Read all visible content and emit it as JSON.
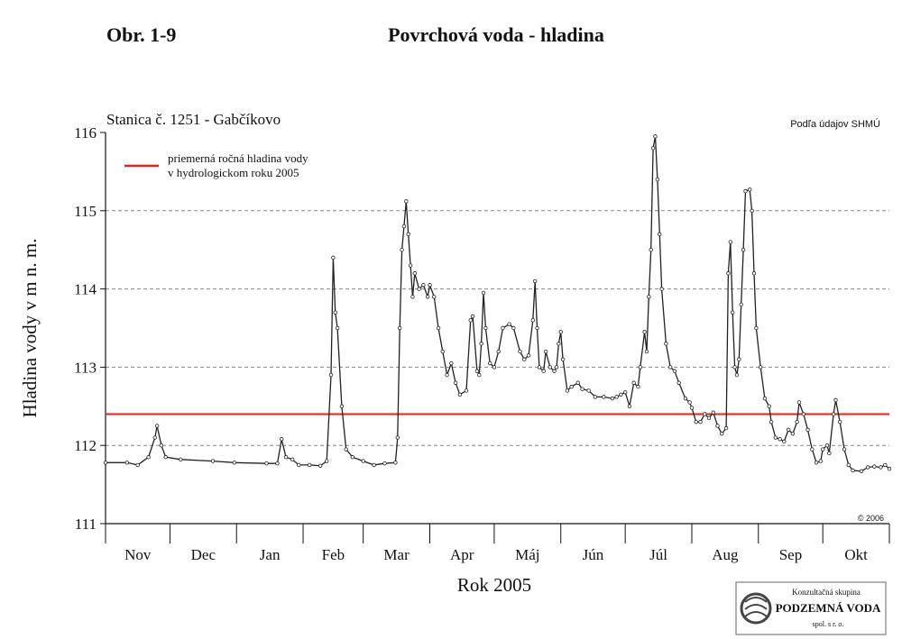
{
  "figure_label": "Obr. 1-9",
  "chart_data": {
    "type": "line",
    "title": "Povrchová voda - hladina",
    "subtitle": "Stanica č. 1251 - Gabčíkovo",
    "source": "Podľa údajov SHMÚ",
    "copyright": "© 2006",
    "ylabel": "Hladina vody v m n. m.",
    "xlabel": "Rok 2005",
    "months": [
      "Nov",
      "Dec",
      "Jan",
      "Feb",
      "Mar",
      "Apr",
      "Máj",
      "Jún",
      "Júl",
      "Aug",
      "Sep",
      "Okt"
    ],
    "xlim": [
      0,
      365
    ],
    "xticks": [
      0,
      30,
      61,
      92,
      120,
      151,
      181,
      212,
      242,
      273,
      304,
      334,
      365
    ],
    "ylim": [
      111,
      116
    ],
    "yticks": [
      111,
      112,
      113,
      114,
      115,
      116
    ],
    "grid": true,
    "reference": {
      "label": [
        "priemerná ročná hladina vody",
        "v hydrologickom roku 2005"
      ],
      "value": 112.4,
      "color": "#e3231b"
    },
    "series": [
      {
        "color": "#222222",
        "x": [
          0,
          10,
          15,
          20,
          23,
          24,
          26,
          28,
          35,
          50,
          60,
          75,
          80,
          82,
          84,
          87,
          90,
          95,
          100,
          103,
          105,
          106,
          107,
          108,
          110,
          112,
          115,
          120,
          125,
          130,
          135,
          136,
          137,
          138,
          139,
          140,
          141,
          142,
          143,
          144,
          146,
          148,
          150,
          151,
          153,
          155,
          157,
          159,
          161,
          163,
          165,
          168,
          170,
          171,
          173,
          174,
          175,
          176,
          177,
          179,
          181,
          183,
          185,
          188,
          190,
          193,
          195,
          197,
          199,
          200,
          201,
          202,
          204,
          205,
          207,
          209,
          210,
          211,
          212,
          213,
          215,
          217,
          220,
          222,
          225,
          228,
          232,
          236,
          238,
          240,
          242,
          244,
          246,
          248,
          249,
          251,
          252,
          253,
          254,
          255,
          256,
          257,
          258,
          259,
          261,
          263,
          265,
          267,
          270,
          272,
          273,
          275,
          277,
          279,
          281,
          283,
          285,
          287,
          289,
          290,
          291,
          292,
          293,
          294,
          295,
          296,
          297,
          298,
          300,
          301,
          302,
          303,
          305,
          307,
          309,
          310,
          312,
          314,
          316,
          318,
          320,
          322,
          323,
          325,
          327,
          329,
          331,
          333,
          334,
          336,
          337,
          339,
          340,
          342,
          344,
          346,
          348,
          352,
          355,
          358,
          361,
          363,
          365
        ],
        "values": [
          111.78,
          111.78,
          111.75,
          111.85,
          112.1,
          112.25,
          112.0,
          111.85,
          111.82,
          111.8,
          111.78,
          111.77,
          111.77,
          112.08,
          111.85,
          111.82,
          111.75,
          111.75,
          111.74,
          111.8,
          112.9,
          114.4,
          113.7,
          113.5,
          112.5,
          111.95,
          111.85,
          111.8,
          111.75,
          111.77,
          111.78,
          112.1,
          113.5,
          114.5,
          114.8,
          115.12,
          114.7,
          114.3,
          113.9,
          114.2,
          114.0,
          114.05,
          113.9,
          114.05,
          113.9,
          113.5,
          113.2,
          112.9,
          113.05,
          112.8,
          112.65,
          112.7,
          113.6,
          113.65,
          112.95,
          112.9,
          113.3,
          113.95,
          113.5,
          113.05,
          113.0,
          113.2,
          113.5,
          113.55,
          113.5,
          113.2,
          113.1,
          113.15,
          113.6,
          114.1,
          113.5,
          113.0,
          112.95,
          113.2,
          113.0,
          112.95,
          113.0,
          113.3,
          113.45,
          113.1,
          112.7,
          112.75,
          112.8,
          112.72,
          112.7,
          112.62,
          112.62,
          112.6,
          112.62,
          112.65,
          112.68,
          112.5,
          112.8,
          112.75,
          113.0,
          113.45,
          113.2,
          113.9,
          114.5,
          115.8,
          115.95,
          115.4,
          114.7,
          114.0,
          113.3,
          113.0,
          112.95,
          112.8,
          112.6,
          112.55,
          112.48,
          112.3,
          112.3,
          112.4,
          112.35,
          112.42,
          112.25,
          112.15,
          112.22,
          114.2,
          114.6,
          113.7,
          113.0,
          112.9,
          113.1,
          113.8,
          114.5,
          115.25,
          115.27,
          115.0,
          114.2,
          113.5,
          113.0,
          112.6,
          112.5,
          112.3,
          112.1,
          112.08,
          112.05,
          112.2,
          112.15,
          112.3,
          112.55,
          112.4,
          112.2,
          111.95,
          111.78,
          111.8,
          111.95,
          112.0,
          111.9,
          112.4,
          112.58,
          112.3,
          111.95,
          111.75,
          111.68,
          111.67,
          111.72,
          111.73,
          111.72,
          111.75,
          111.7
        ]
      }
    ]
  },
  "logo": {
    "line1": "Konzultačná skupina",
    "line2": "PODZEMNÁ VODA",
    "line3": "spol. s r. o."
  }
}
